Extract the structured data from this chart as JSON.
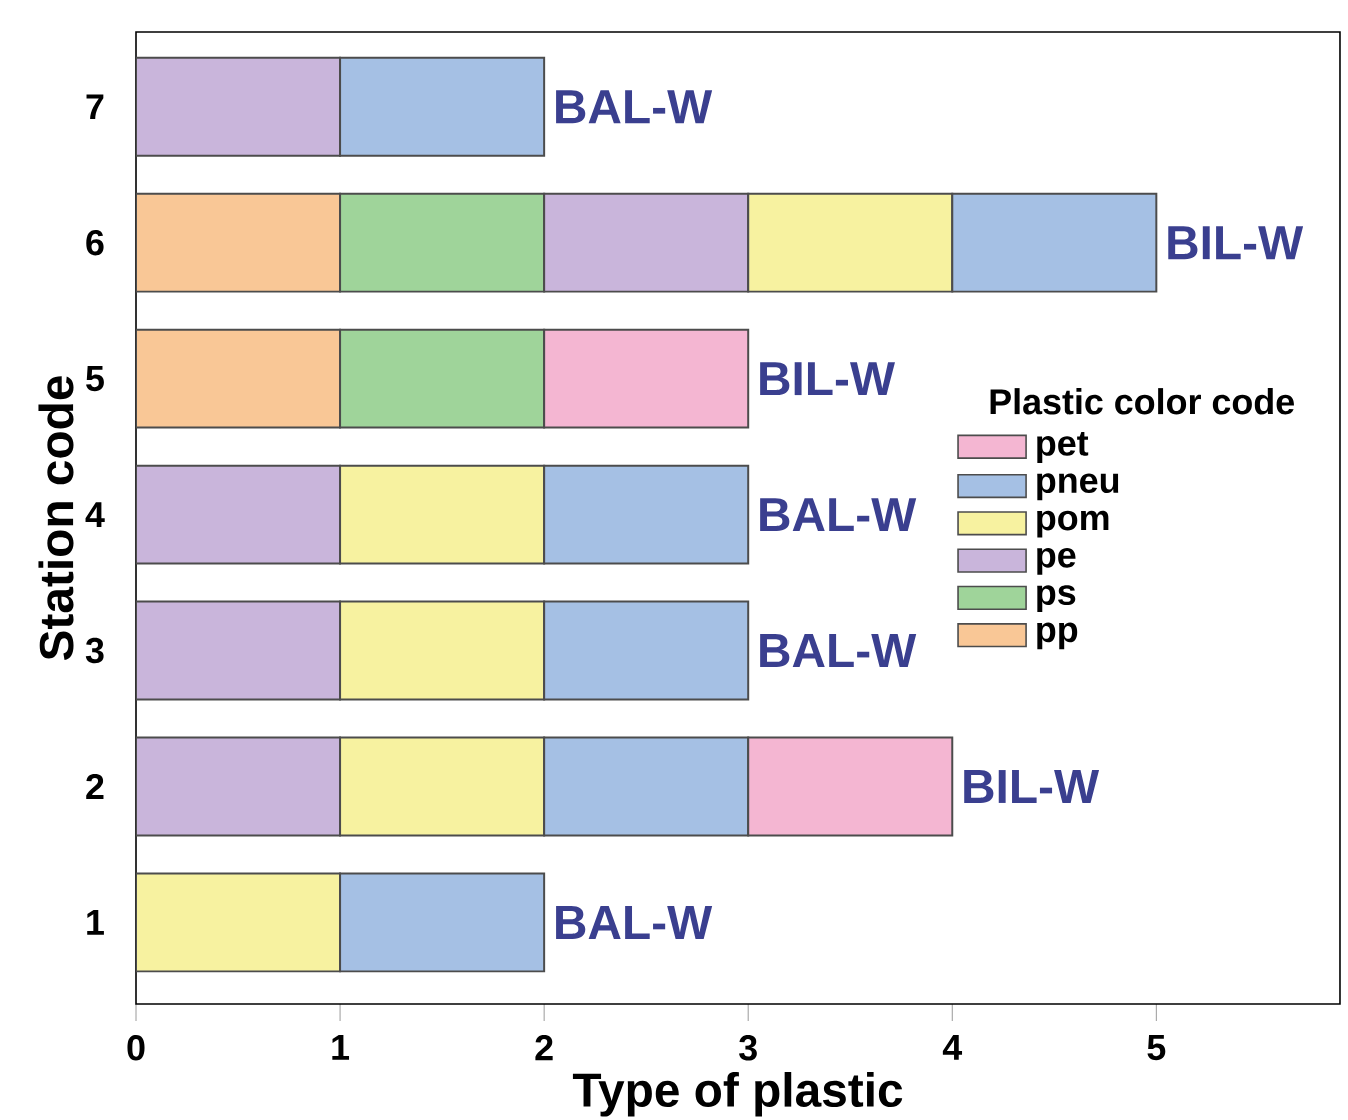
{
  "chart_data": {
    "type": "bar",
    "orientation": "horizontal",
    "stacked": true,
    "xlabel": "Type of plastic",
    "ylabel": "Station code",
    "legend_title": "Plastic color code",
    "categories": [
      "7",
      "6",
      "5",
      "4",
      "3",
      "2",
      "1"
    ],
    "series": [
      {
        "name": "pp",
        "color": "#f9c796",
        "values": [
          null,
          1,
          1,
          null,
          null,
          null,
          null
        ]
      },
      {
        "name": "ps",
        "color": "#9fd49a",
        "values": [
          null,
          1,
          1,
          null,
          null,
          null,
          null
        ]
      },
      {
        "name": "pe",
        "color": "#c9b5db",
        "values": [
          1,
          1,
          null,
          1,
          1,
          1,
          null
        ]
      },
      {
        "name": "pom",
        "color": "#f7f2a0",
        "values": [
          null,
          1,
          null,
          1,
          1,
          1,
          1
        ]
      },
      {
        "name": "pneu",
        "color": "#a5c0e4",
        "values": [
          1,
          1,
          null,
          1,
          1,
          1,
          1
        ]
      },
      {
        "name": "pet",
        "color": "#f4b6d2",
        "values": [
          null,
          null,
          1,
          null,
          null,
          1,
          null
        ]
      }
    ],
    "xlim": [
      0,
      5.9
    ],
    "xticks": [
      0,
      1,
      2,
      3,
      4,
      5
    ],
    "legend": "right",
    "annotations": [
      {
        "text": "BAL-W",
        "x": 2,
        "y": "7"
      },
      {
        "text": "BIL-W",
        "x": 5,
        "y": "6"
      },
      {
        "text": "BIL-W",
        "x": 3,
        "y": "5"
      },
      {
        "text": "BAL-W",
        "x": 3,
        "y": "4"
      },
      {
        "text": "BAL-W",
        "x": 3,
        "y": "3"
      },
      {
        "text": "BIL-W",
        "x": 4,
        "y": "2"
      },
      {
        "text": "BAL-W",
        "x": 2,
        "y": "1"
      }
    ]
  }
}
